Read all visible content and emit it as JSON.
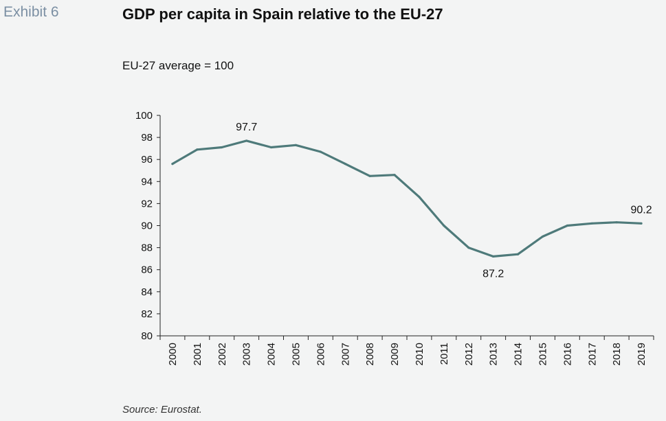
{
  "header": {
    "exhibit_label": "Exhibit 6",
    "title": "GDP per capita in Spain relative to the EU-27",
    "subtitle": "EU-27 average = 100"
  },
  "footer": {
    "source": "Source: Eurostat."
  },
  "colors": {
    "line": "#4e7a7a",
    "background": "#f3f4f4"
  },
  "chart_data": {
    "type": "line",
    "title": "GDP per capita in Spain relative to the EU-27",
    "subtitle": "EU-27 average = 100",
    "xlabel": "",
    "ylabel": "",
    "ylim": [
      80,
      100
    ],
    "yticks": [
      80,
      82,
      84,
      86,
      88,
      90,
      92,
      94,
      96,
      98,
      100
    ],
    "grid": false,
    "legend": "none",
    "categories": [
      "2000",
      "2001",
      "2002",
      "2003",
      "2004",
      "2005",
      "2006",
      "2007",
      "2008",
      "2009",
      "2010",
      "2011",
      "2012",
      "2013",
      "2014",
      "2015",
      "2016",
      "2017",
      "2018",
      "2019"
    ],
    "series": [
      {
        "values": [
          95.6,
          96.9,
          97.1,
          97.7,
          97.1,
          97.3,
          96.7,
          95.6,
          94.5,
          94.6,
          92.6,
          90.0,
          88.0,
          87.2,
          87.4,
          89.0,
          90.0,
          90.2,
          90.3,
          90.2
        ]
      }
    ],
    "annotations": [
      {
        "category": "2003",
        "text": "97.7",
        "position": "above"
      },
      {
        "category": "2013",
        "text": "87.2",
        "position": "below"
      },
      {
        "category": "2019",
        "text": "90.2",
        "position": "above"
      }
    ]
  }
}
